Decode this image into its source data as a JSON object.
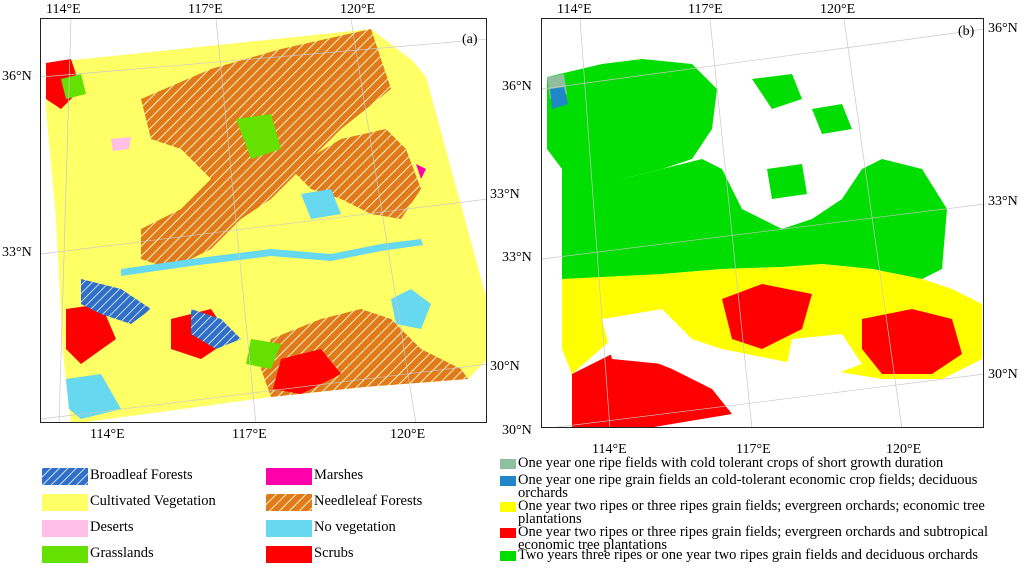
{
  "colors": {
    "broadleaf": "#2f6fc8",
    "cultivated": "#ffff66",
    "deserts": "#ffbfe6",
    "grasslands": "#66e000",
    "marshes": "#ff00aa",
    "needleleaf": "#e07a1a",
    "no_vegetation": "#66d8f0",
    "scrubs": "#ff0000",
    "b_cold": "#8fbf9f",
    "b_grain": "#1f86c8",
    "b_yellow": "#ffff00",
    "b_red": "#ff0000",
    "b_green": "#00dd00"
  },
  "panel_a": {
    "label": "(a)",
    "top_lon": [
      "114°E",
      "117°E",
      "120°E"
    ],
    "bottom_lon": [
      "114°E",
      "117°E",
      "120°E"
    ],
    "left_lat": [
      "36°N",
      "33°N"
    ],
    "right_lat": [
      "33°N",
      "30°N"
    ]
  },
  "panel_b": {
    "label": "(b)",
    "top_lon": [
      "114°E",
      "117°E",
      "120°E"
    ],
    "bottom_lon": [
      "114°E",
      "117°E",
      "120°E"
    ],
    "left_lat": [
      "36°N",
      "33°N",
      "30°N"
    ],
    "right_lat": [
      "36°N",
      "33°N",
      "30°N"
    ]
  },
  "legend_a": [
    {
      "label": "Broadleaf Forests",
      "icon": "hatched-blue-swatch"
    },
    {
      "label": "Cultivated Vegetation",
      "icon": "yellow-swatch"
    },
    {
      "label": "Deserts",
      "icon": "pink-swatch"
    },
    {
      "label": "Grasslands",
      "icon": "green-swatch"
    },
    {
      "label": "Marshes",
      "icon": "magenta-swatch"
    },
    {
      "label": "Needleleaf Forests",
      "icon": "hatched-orange-swatch"
    },
    {
      "label": "No vegetation",
      "icon": "cyan-swatch"
    },
    {
      "label": "Scrubs",
      "icon": "red-swatch"
    }
  ],
  "legend_b": [
    {
      "label": "One year one ripe fields with cold tolerant crops of short growth duration"
    },
    {
      "label": "One year one ripe grain fields an cold-tolerant economic crop fields; deciduous orchards"
    },
    {
      "label": "One year two ripes or three ripes grain fields; evergreen orchards; economic tree plantations"
    },
    {
      "label": "One year two ripes or three ripes grain fields; evergreen orchards and subtropical economic tree plantations"
    },
    {
      "label": "Two years three ripes or one year two ripes grain fields and deciduous orchards"
    }
  ]
}
